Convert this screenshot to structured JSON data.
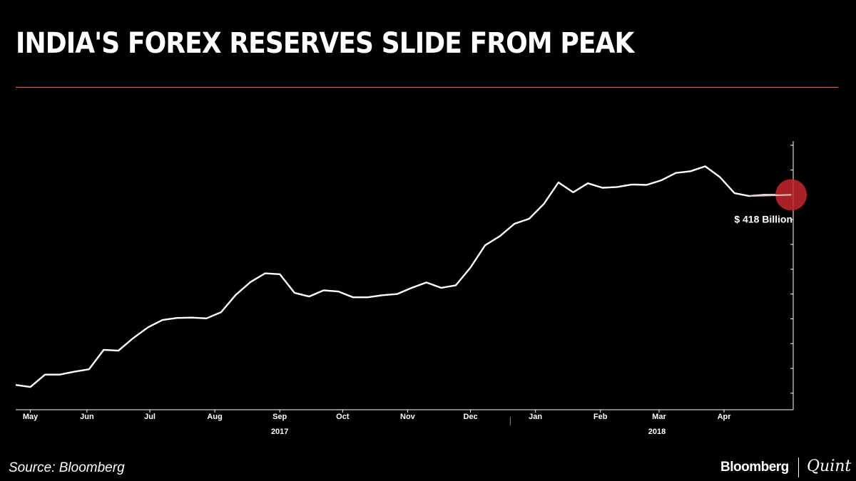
{
  "header": {
    "title": "INDIA'S FOREX RESERVES SLIDE FROM PEAK"
  },
  "footer": {
    "source": "Source: Bloomberg",
    "brand_primary": "Bloomberg",
    "brand_secondary": "Quint"
  },
  "colors": {
    "background": "#000000",
    "line": "#ffffff",
    "accent_rule": "#c8705a",
    "highlight": "#c0262c"
  },
  "chart_data": {
    "type": "line",
    "title": "INDIA'S FOREX RESERVES SLIDE FROM PEAK",
    "xlabel": "",
    "ylabel": "",
    "x_ticks": [
      {
        "label": "May",
        "date": "2017-05-05"
      },
      {
        "label": "Jun",
        "date": "2017-06-01"
      },
      {
        "label": "Jul",
        "date": "2017-07-01"
      },
      {
        "label": "Aug",
        "date": "2017-08-01"
      },
      {
        "label": "Sep",
        "date": "2017-09-01"
      },
      {
        "label": "Oct",
        "date": "2017-10-01"
      },
      {
        "label": "Nov",
        "date": "2017-11-01"
      },
      {
        "label": "Dec",
        "date": "2017-12-01"
      },
      {
        "label": "Jan",
        "date": "2018-01-01"
      },
      {
        "label": "Feb",
        "date": "2018-02-01"
      },
      {
        "label": "Mar",
        "date": "2018-03-01"
      },
      {
        "label": "Apr",
        "date": "2018-04-01"
      }
    ],
    "year_labels": [
      {
        "label": "2017",
        "date": "2017-09-01"
      },
      {
        "label": "2018",
        "date": "2018-02-28"
      }
    ],
    "year_divider_date": "2017-12-20",
    "xlim": [
      "2017-04-28",
      "2018-05-04"
    ],
    "ylim": [
      366,
      431
    ],
    "y_ticks": [
      370,
      376,
      382,
      388,
      394,
      400,
      406,
      412,
      418,
      424,
      430
    ],
    "y_tick_labels_visible": false,
    "grid": false,
    "legend": "none",
    "series": [
      {
        "x": [
          "2017-04-28",
          "2017-05-05",
          "2017-05-12",
          "2017-05-19",
          "2017-05-26",
          "2017-06-02",
          "2017-06-09",
          "2017-06-16",
          "2017-06-23",
          "2017-06-30",
          "2017-07-07",
          "2017-07-14",
          "2017-07-21",
          "2017-07-28",
          "2017-08-04",
          "2017-08-11",
          "2017-08-18",
          "2017-08-25",
          "2017-09-01",
          "2017-09-08",
          "2017-09-15",
          "2017-09-22",
          "2017-09-29",
          "2017-10-06",
          "2017-10-13",
          "2017-10-20",
          "2017-10-27",
          "2017-11-03",
          "2017-11-10",
          "2017-11-17",
          "2017-11-24",
          "2017-12-01",
          "2017-12-08",
          "2017-12-15",
          "2017-12-22",
          "2017-12-29",
          "2018-01-05",
          "2018-01-12",
          "2018-01-19",
          "2018-01-26",
          "2018-02-02",
          "2018-02-09",
          "2018-02-16",
          "2018-02-23",
          "2018-03-02",
          "2018-03-09",
          "2018-03-16",
          "2018-03-23",
          "2018-03-30",
          "2018-04-06",
          "2018-04-13",
          "2018-04-20",
          "2018-04-27"
        ],
        "values": [
          372.0,
          371.5,
          374.5,
          374.5,
          375.2,
          375.8,
          380.5,
          380.3,
          383.3,
          385.9,
          387.7,
          388.2,
          388.3,
          388.1,
          389.6,
          393.8,
          396.9,
          399.0,
          398.8,
          394.3,
          393.4,
          394.9,
          394.6,
          393.2,
          393.2,
          393.7,
          394.0,
          395.5,
          396.8,
          395.5,
          396.1,
          400.4,
          405.8,
          408.0,
          411.0,
          412.2,
          415.8,
          421.0,
          418.6,
          420.8,
          419.7,
          419.9,
          420.5,
          420.4,
          421.5,
          423.3,
          423.7,
          424.9,
          422.3,
          418.4,
          417.7,
          418.0,
          418.0
        ]
      }
    ],
    "highlighted_value": {
      "date": "2018-05-03",
      "value": 418,
      "label": "$ 418 Billion"
    }
  }
}
